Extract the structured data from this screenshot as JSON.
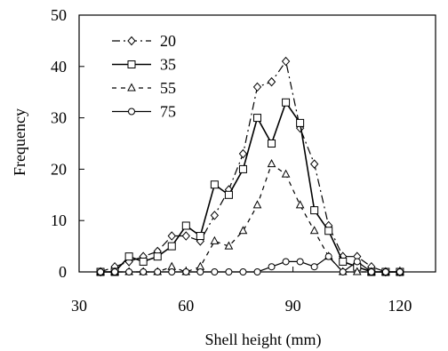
{
  "chart_data": {
    "type": "line",
    "title": "",
    "xlabel": "Shell height (mm)",
    "ylabel": "Frequency",
    "xlim": [
      30,
      130
    ],
    "ylim": [
      0,
      50
    ],
    "xticks": [
      30,
      60,
      90,
      120
    ],
    "yticks": [
      0,
      10,
      20,
      30,
      40,
      50
    ],
    "grid": false,
    "legend_position": "top-left",
    "series": [
      {
        "name": "20",
        "marker": "diamond",
        "dash": "dash-dot",
        "x": [
          36,
          40,
          44,
          48,
          52,
          56,
          60,
          64,
          68,
          72,
          76,
          80,
          84,
          88,
          92,
          96,
          100,
          104,
          108,
          112,
          116,
          120
        ],
        "y": [
          0,
          1,
          2,
          3,
          4,
          7,
          7,
          6,
          11,
          16,
          23,
          36,
          37,
          41,
          28,
          21,
          9,
          3,
          3,
          1,
          0,
          0
        ]
      },
      {
        "name": "35",
        "marker": "square",
        "dash": "solid",
        "x": [
          36,
          40,
          44,
          48,
          52,
          56,
          60,
          64,
          68,
          72,
          76,
          80,
          84,
          88,
          92,
          96,
          100,
          104,
          108,
          112,
          116,
          120
        ],
        "y": [
          0,
          0,
          3,
          2,
          3,
          5,
          9,
          7,
          17,
          15,
          20,
          30,
          25,
          33,
          29,
          12,
          8,
          2,
          1,
          0,
          0,
          0
        ]
      },
      {
        "name": "55",
        "marker": "triangle",
        "dash": "dashed",
        "x": [
          36,
          40,
          44,
          48,
          52,
          56,
          60,
          64,
          68,
          72,
          76,
          80,
          84,
          88,
          92,
          96,
          100,
          104,
          108,
          112,
          116,
          120
        ],
        "y": [
          0,
          0,
          0,
          0,
          0,
          1,
          0,
          1,
          6,
          5,
          8,
          13,
          21,
          19,
          13,
          8,
          3,
          0,
          0,
          0,
          0,
          0
        ]
      },
      {
        "name": "75",
        "marker": "circle",
        "dash": "solid",
        "x": [
          36,
          40,
          44,
          48,
          52,
          56,
          60,
          64,
          68,
          72,
          76,
          80,
          84,
          88,
          92,
          96,
          100,
          104,
          108,
          112,
          116,
          120
        ],
        "y": [
          0,
          0,
          0,
          0,
          0,
          0,
          0,
          0,
          0,
          0,
          0,
          0,
          1,
          2,
          2,
          1,
          3,
          0,
          2,
          0,
          0,
          0
        ]
      }
    ]
  },
  "colors": {
    "line": "#000000",
    "marker_fill": "#ffffff",
    "background": "#ffffff"
  }
}
